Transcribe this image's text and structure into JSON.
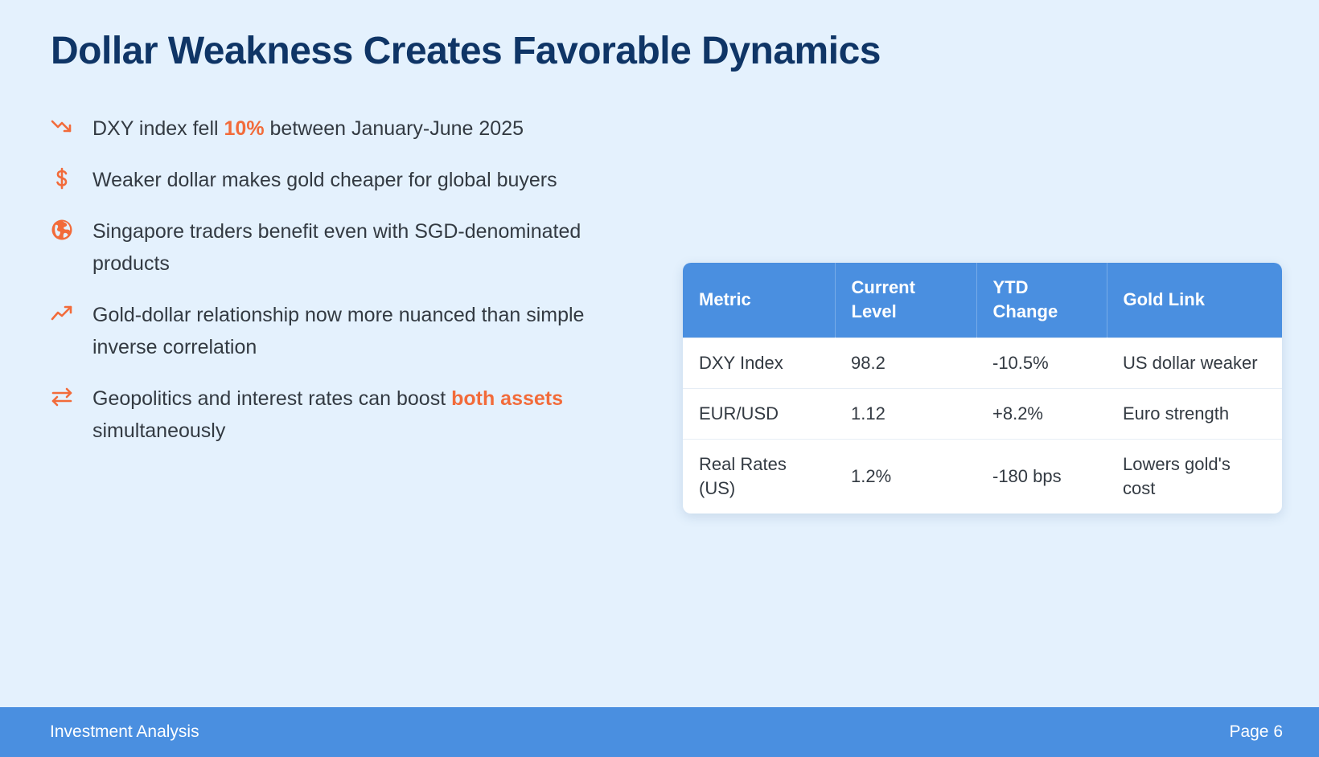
{
  "title": "Dollar Weakness Creates Favorable Dynamics",
  "colors": {
    "background": "#e4f1fd",
    "title": "#0f3566",
    "accent": "#f26b3a",
    "header_blue": "#4a8fe0"
  },
  "bullets": [
    {
      "icon": "trend-down-icon",
      "pre": "DXY index fell ",
      "highlight": "10%",
      "post": " between January-June 2025"
    },
    {
      "icon": "dollar-icon",
      "text": "Weaker dollar makes gold cheaper for global buyers"
    },
    {
      "icon": "globe-icon",
      "text": "Singapore traders benefit even with SGD-denominated products"
    },
    {
      "icon": "trend-up-icon",
      "text": "Gold-dollar relationship now more nuanced than simple inverse correlation"
    },
    {
      "icon": "exchange-arrows-icon",
      "pre": "Geopolitics and interest rates can boost ",
      "highlight": "both assets",
      "post": " simultaneously"
    }
  ],
  "table": {
    "headers": [
      "Metric",
      "Current Level",
      "YTD Change",
      "Gold Link"
    ],
    "rows": [
      [
        "DXY Index",
        "98.2",
        "-10.5%",
        "US dollar weaker"
      ],
      [
        "EUR/USD",
        "1.12",
        "+8.2%",
        "Euro strength"
      ],
      [
        "Real Rates (US)",
        "1.2%",
        "-180 bps",
        "Lowers gold's cost"
      ]
    ]
  },
  "footer": {
    "left": "Investment Analysis",
    "right": "Page 6"
  }
}
